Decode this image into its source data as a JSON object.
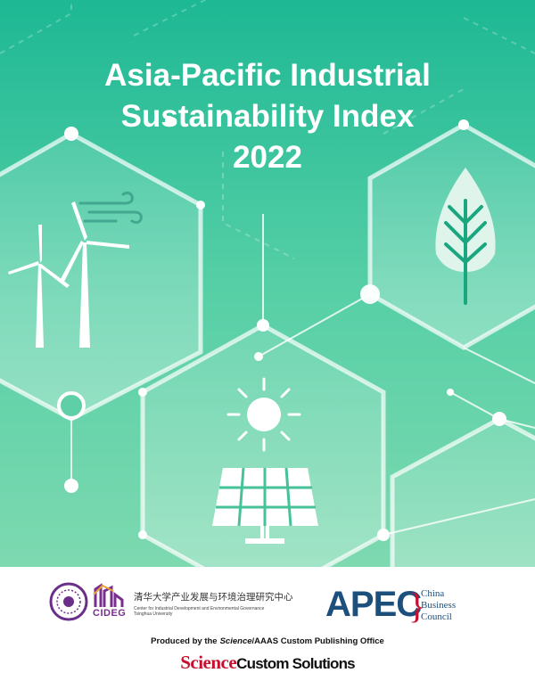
{
  "cover": {
    "title_lines": [
      "Asia-Pacific Industrial",
      "Sustainability Index",
      "2022"
    ]
  },
  "footer": {
    "cideg": {
      "name": "CIDEG",
      "chinese": "清华大学产业发展与环境治理研究中心",
      "english_lines": [
        "Center for Industrial Development and Environmental Governance",
        "Tsinghua University"
      ]
    },
    "apec": {
      "name": "APEC",
      "council_lines": [
        "China",
        "Business",
        "Council"
      ]
    },
    "credit": {
      "prefix": "Produced by the",
      "italic": "Science",
      "suffix": "/AAAS Custom Publishing Office"
    },
    "brand": {
      "science": "Science",
      "custom": "Custom Solutions"
    }
  }
}
